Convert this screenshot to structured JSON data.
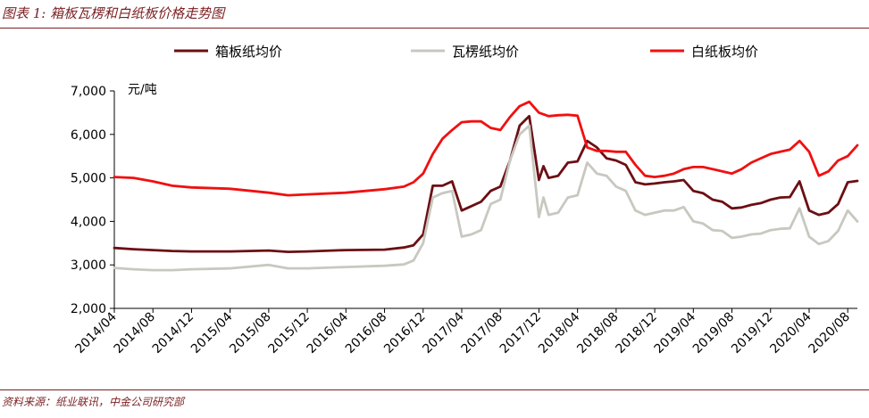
{
  "header": {
    "title": "图表 1:  箱板瓦楞和白纸板价格走势图"
  },
  "footer": {
    "source": "资料来源：纸业联讯，中金公司研究部"
  },
  "colors": {
    "accent": "#7a1f22",
    "box_board": "#6b0f14",
    "corrugated": "#c8c8c0",
    "white_board": "#f01010"
  },
  "chart_data": {
    "type": "line",
    "title": "",
    "ylabel": "元/吨",
    "ylim": [
      2000,
      7000
    ],
    "yticks": [
      2000,
      3000,
      4000,
      5000,
      6000,
      7000
    ],
    "ytick_labels": [
      "2,000",
      "3,000",
      "4,000",
      "5,000",
      "6,000",
      "7,000"
    ],
    "xlim": [
      "2014-04",
      "2020-09"
    ],
    "xticks": [
      "2014-04",
      "2014-08",
      "2014-12",
      "2015-04",
      "2015-08",
      "2015-12",
      "2016-04",
      "2016-08",
      "2016-12",
      "2017-04",
      "2017-08",
      "2017-12",
      "2018-04",
      "2018-08",
      "2018-12",
      "2019-04",
      "2019-08",
      "2019-12",
      "2020-04",
      "2020-08"
    ],
    "xtick_labels": [
      "2014/04",
      "2014/08",
      "2014/12",
      "2015/04",
      "2015/08",
      "2015/12",
      "2016/04",
      "2016/08",
      "2016/12",
      "2017/04",
      "2017/08",
      "2017/12",
      "2018/04",
      "2018/08",
      "2018/12",
      "2019/04",
      "2019/08",
      "2019/12",
      "2020/04",
      "2020/08"
    ],
    "legend_position": "top",
    "grid": false,
    "series": [
      {
        "name": "箱板纸均价",
        "color": "#6b0f14",
        "points": [
          [
            "2014-04",
            3390
          ],
          [
            "2014-06",
            3360
          ],
          [
            "2014-08",
            3340
          ],
          [
            "2014-10",
            3320
          ],
          [
            "2014-12",
            3310
          ],
          [
            "2015-04",
            3310
          ],
          [
            "2015-08",
            3330
          ],
          [
            "2015-10",
            3300
          ],
          [
            "2015-12",
            3310
          ],
          [
            "2016-04",
            3340
          ],
          [
            "2016-08",
            3350
          ],
          [
            "2016-10",
            3400
          ],
          [
            "2016-11",
            3450
          ],
          [
            "2016-12",
            3700
          ],
          [
            "2017-01",
            4820
          ],
          [
            "2017-02",
            4820
          ],
          [
            "2017-03",
            4920
          ],
          [
            "2017-04",
            4250
          ],
          [
            "2017-05",
            4350
          ],
          [
            "2017-06",
            4450
          ],
          [
            "2017-07",
            4700
          ],
          [
            "2017-08",
            4800
          ],
          [
            "2017-09",
            5400
          ],
          [
            "2017-10",
            6200
          ],
          [
            "2017-11",
            6420
          ],
          [
            "2017-12",
            4950
          ],
          [
            "2017-12-15",
            5270
          ],
          [
            "2018-01",
            5000
          ],
          [
            "2018-02",
            5050
          ],
          [
            "2018-03",
            5350
          ],
          [
            "2018-04",
            5380
          ],
          [
            "2018-05",
            5850
          ],
          [
            "2018-06",
            5700
          ],
          [
            "2018-07",
            5450
          ],
          [
            "2018-08",
            5400
          ],
          [
            "2018-09",
            5300
          ],
          [
            "2018-10",
            4900
          ],
          [
            "2018-11",
            4850
          ],
          [
            "2018-12",
            4870
          ],
          [
            "2019-01",
            4900
          ],
          [
            "2019-02",
            4920
          ],
          [
            "2019-03",
            4950
          ],
          [
            "2019-04",
            4700
          ],
          [
            "2019-05",
            4650
          ],
          [
            "2019-06",
            4500
          ],
          [
            "2019-07",
            4450
          ],
          [
            "2019-08",
            4300
          ],
          [
            "2019-09",
            4320
          ],
          [
            "2019-10",
            4380
          ],
          [
            "2019-11",
            4420
          ],
          [
            "2019-12",
            4500
          ],
          [
            "2020-01",
            4550
          ],
          [
            "2020-02",
            4560
          ],
          [
            "2020-03",
            4920
          ],
          [
            "2020-04",
            4250
          ],
          [
            "2020-05",
            4150
          ],
          [
            "2020-06",
            4200
          ],
          [
            "2020-07",
            4400
          ],
          [
            "2020-08",
            4900
          ],
          [
            "2020-09",
            4930
          ]
        ]
      },
      {
        "name": "瓦楞纸均价",
        "color": "#c8c8c0",
        "points": [
          [
            "2014-04",
            2930
          ],
          [
            "2014-06",
            2900
          ],
          [
            "2014-08",
            2880
          ],
          [
            "2014-10",
            2880
          ],
          [
            "2014-12",
            2900
          ],
          [
            "2015-04",
            2920
          ],
          [
            "2015-08",
            3000
          ],
          [
            "2015-10",
            2920
          ],
          [
            "2015-12",
            2920
          ],
          [
            "2016-04",
            2950
          ],
          [
            "2016-08",
            2980
          ],
          [
            "2016-10",
            3010
          ],
          [
            "2016-11",
            3100
          ],
          [
            "2016-12",
            3500
          ],
          [
            "2017-01",
            4550
          ],
          [
            "2017-02",
            4650
          ],
          [
            "2017-03",
            4700
          ],
          [
            "2017-04",
            3650
          ],
          [
            "2017-05",
            3700
          ],
          [
            "2017-06",
            3800
          ],
          [
            "2017-07",
            4400
          ],
          [
            "2017-08",
            4500
          ],
          [
            "2017-09",
            5400
          ],
          [
            "2017-10",
            6000
          ],
          [
            "2017-11",
            6200
          ],
          [
            "2017-12",
            4100
          ],
          [
            "2017-12-15",
            4550
          ],
          [
            "2018-01",
            4150
          ],
          [
            "2018-02",
            4200
          ],
          [
            "2018-03",
            4550
          ],
          [
            "2018-04",
            4600
          ],
          [
            "2018-05",
            5350
          ],
          [
            "2018-06",
            5100
          ],
          [
            "2018-07",
            5050
          ],
          [
            "2018-08",
            4800
          ],
          [
            "2018-09",
            4700
          ],
          [
            "2018-10",
            4250
          ],
          [
            "2018-11",
            4150
          ],
          [
            "2018-12",
            4200
          ],
          [
            "2019-01",
            4250
          ],
          [
            "2019-02",
            4250
          ],
          [
            "2019-03",
            4330
          ],
          [
            "2019-04",
            4000
          ],
          [
            "2019-05",
            3950
          ],
          [
            "2019-06",
            3800
          ],
          [
            "2019-07",
            3780
          ],
          [
            "2019-08",
            3620
          ],
          [
            "2019-09",
            3650
          ],
          [
            "2019-10",
            3700
          ],
          [
            "2019-11",
            3720
          ],
          [
            "2019-12",
            3800
          ],
          [
            "2020-01",
            3830
          ],
          [
            "2020-02",
            3840
          ],
          [
            "2020-03",
            4300
          ],
          [
            "2020-04",
            3650
          ],
          [
            "2020-05",
            3480
          ],
          [
            "2020-06",
            3550
          ],
          [
            "2020-07",
            3780
          ],
          [
            "2020-08",
            4250
          ],
          [
            "2020-09",
            4000
          ]
        ]
      },
      {
        "name": "白纸板均价",
        "color": "#f01010",
        "points": [
          [
            "2014-04",
            5020
          ],
          [
            "2014-06",
            5000
          ],
          [
            "2014-08",
            4920
          ],
          [
            "2014-10",
            4820
          ],
          [
            "2014-12",
            4780
          ],
          [
            "2015-04",
            4750
          ],
          [
            "2015-08",
            4660
          ],
          [
            "2015-10",
            4600
          ],
          [
            "2015-12",
            4620
          ],
          [
            "2016-04",
            4660
          ],
          [
            "2016-08",
            4740
          ],
          [
            "2016-10",
            4800
          ],
          [
            "2016-11",
            4900
          ],
          [
            "2016-12",
            5100
          ],
          [
            "2017-01",
            5550
          ],
          [
            "2017-02",
            5900
          ],
          [
            "2017-03",
            6100
          ],
          [
            "2017-04",
            6280
          ],
          [
            "2017-05",
            6300
          ],
          [
            "2017-06",
            6300
          ],
          [
            "2017-07",
            6150
          ],
          [
            "2017-08",
            6100
          ],
          [
            "2017-09",
            6400
          ],
          [
            "2017-10",
            6650
          ],
          [
            "2017-11",
            6750
          ],
          [
            "2017-12",
            6500
          ],
          [
            "2018-01",
            6420
          ],
          [
            "2018-02",
            6440
          ],
          [
            "2018-03",
            6450
          ],
          [
            "2018-04",
            6430
          ],
          [
            "2018-05",
            5700
          ],
          [
            "2018-06",
            5620
          ],
          [
            "2018-07",
            5620
          ],
          [
            "2018-08",
            5600
          ],
          [
            "2018-09",
            5600
          ],
          [
            "2018-10",
            5300
          ],
          [
            "2018-11",
            5050
          ],
          [
            "2018-12",
            5020
          ],
          [
            "2019-01",
            5050
          ],
          [
            "2019-02",
            5100
          ],
          [
            "2019-03",
            5200
          ],
          [
            "2019-04",
            5250
          ],
          [
            "2019-05",
            5250
          ],
          [
            "2019-06",
            5200
          ],
          [
            "2019-07",
            5150
          ],
          [
            "2019-08",
            5100
          ],
          [
            "2019-09",
            5200
          ],
          [
            "2019-10",
            5350
          ],
          [
            "2019-11",
            5450
          ],
          [
            "2019-12",
            5550
          ],
          [
            "2020-01",
            5600
          ],
          [
            "2020-02",
            5650
          ],
          [
            "2020-03",
            5850
          ],
          [
            "2020-04",
            5600
          ],
          [
            "2020-05",
            5050
          ],
          [
            "2020-06",
            5150
          ],
          [
            "2020-07",
            5400
          ],
          [
            "2020-08",
            5500
          ],
          [
            "2020-09",
            5750
          ]
        ]
      }
    ]
  }
}
